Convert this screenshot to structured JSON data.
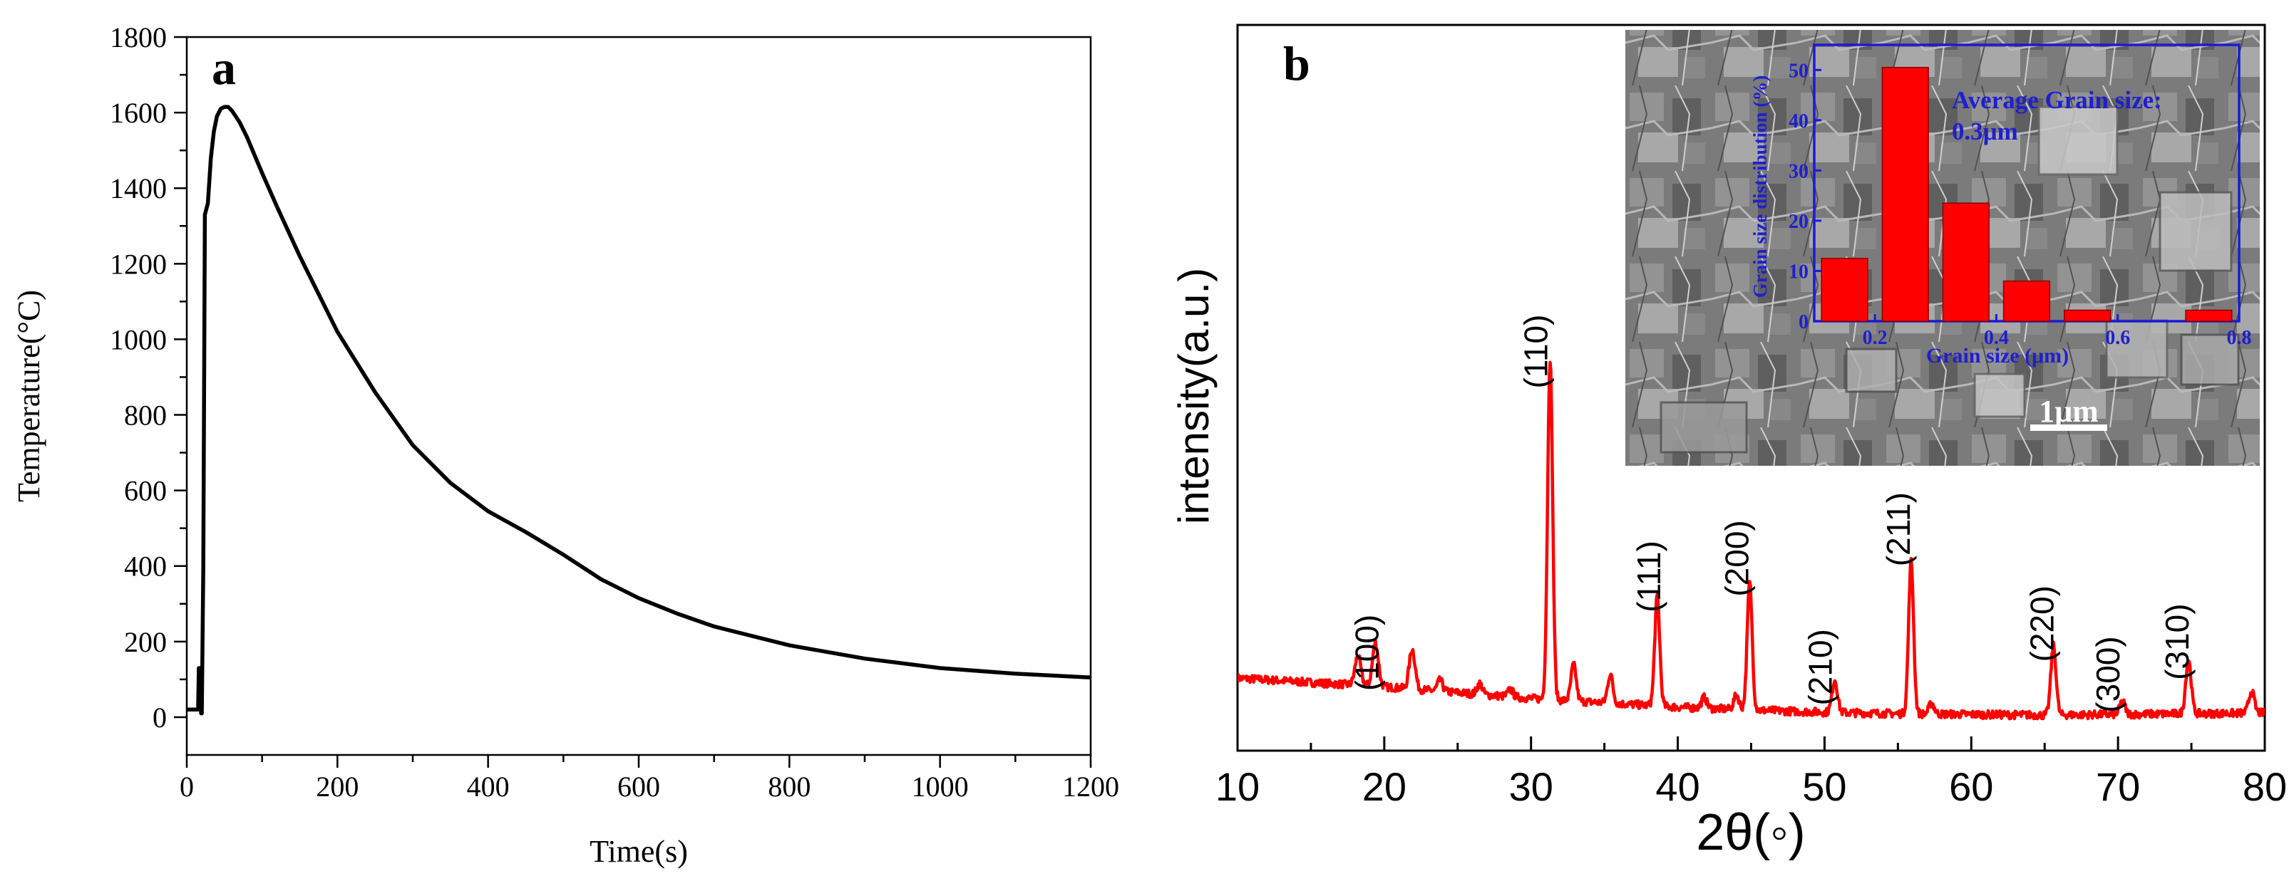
{
  "colors": {
    "panel_a_line": "#000000",
    "panel_b_line": "#ff0000",
    "inset_bar": "#ff0000",
    "inset_text": "#1f1fd0",
    "inset_frame": "#1a1ad8",
    "axis": "#000000"
  },
  "chart_data": [
    {
      "id": "a",
      "type": "line",
      "panel_label": "a",
      "title": "",
      "xlabel": "Time(s)",
      "ylabel": "Temperature(°C)",
      "xlim": [
        0,
        1200
      ],
      "ylim": [
        -100,
        1800
      ],
      "xticks": [
        0,
        200,
        400,
        600,
        800,
        1000,
        1200
      ],
      "yticks": [
        0,
        200,
        400,
        600,
        800,
        1000,
        1200,
        1400,
        1600,
        1800
      ],
      "series": [
        {
          "name": "temperature",
          "x": [
            0,
            15,
            16,
            18,
            19,
            20,
            22,
            24,
            28,
            32,
            36,
            40,
            45,
            50,
            55,
            60,
            70,
            80,
            100,
            120,
            150,
            200,
            250,
            300,
            350,
            400,
            450,
            500,
            550,
            600,
            650,
            700,
            800,
            900,
            1000,
            1100,
            1200
          ],
          "y": [
            20,
            20,
            130,
            130,
            10,
            10,
            400,
            1330,
            1360,
            1480,
            1550,
            1590,
            1610,
            1615,
            1615,
            1605,
            1575,
            1535,
            1440,
            1350,
            1220,
            1020,
            860,
            720,
            620,
            545,
            490,
            430,
            365,
            315,
            275,
            240,
            190,
            155,
            130,
            115,
            105
          ]
        }
      ]
    },
    {
      "id": "b",
      "type": "line",
      "panel_label": "b",
      "title": "",
      "xlabel": "2θ(◦)",
      "ylabel": "intensity(a.u.)",
      "xlim": [
        10,
        80
      ],
      "ylim": [
        0,
        100
      ],
      "xticks": [
        10,
        20,
        30,
        40,
        50,
        60,
        70,
        80
      ],
      "baseline": [
        [
          10,
          10.0
        ],
        [
          15,
          9.4
        ],
        [
          20,
          8.8
        ],
        [
          25,
          8.0
        ],
        [
          30,
          7.2
        ],
        [
          35,
          6.6
        ],
        [
          40,
          6.0
        ],
        [
          45,
          5.6
        ],
        [
          50,
          5.3
        ],
        [
          55,
          5.1
        ],
        [
          60,
          5.0
        ],
        [
          65,
          4.9
        ],
        [
          70,
          5.0
        ],
        [
          75,
          5.1
        ],
        [
          80,
          5.2
        ]
      ],
      "peaks": [
        {
          "x": 18.2,
          "h": 4.0,
          "w": 0.28
        },
        {
          "x": 19.4,
          "h": 6.0,
          "w": 0.28
        },
        {
          "x": 21.9,
          "h": 5.5,
          "w": 0.28
        },
        {
          "x": 23.8,
          "h": 1.5,
          "w": 0.25
        },
        {
          "x": 26.5,
          "h": 1.5,
          "w": 0.25
        },
        {
          "x": 28.6,
          "h": 1.0,
          "w": 0.25
        },
        {
          "x": 31.3,
          "h": 47.0,
          "w": 0.24
        },
        {
          "x": 32.9,
          "h": 5.0,
          "w": 0.25
        },
        {
          "x": 35.4,
          "h": 4.0,
          "w": 0.25
        },
        {
          "x": 38.6,
          "h": 15.0,
          "w": 0.24
        },
        {
          "x": 41.8,
          "h": 1.5,
          "w": 0.25
        },
        {
          "x": 44.0,
          "h": 2.0,
          "w": 0.25
        },
        {
          "x": 44.9,
          "h": 17.5,
          "w": 0.24
        },
        {
          "x": 50.7,
          "h": 4.5,
          "w": 0.26
        },
        {
          "x": 55.9,
          "h": 21.0,
          "w": 0.24
        },
        {
          "x": 57.3,
          "h": 1.5,
          "w": 0.25
        },
        {
          "x": 65.6,
          "h": 9.5,
          "w": 0.25
        },
        {
          "x": 70.3,
          "h": 1.8,
          "w": 0.25
        },
        {
          "x": 74.8,
          "h": 7.5,
          "w": 0.26
        },
        {
          "x": 79.1,
          "h": 3.0,
          "w": 0.26
        }
      ],
      "annotations": [
        {
          "text": "(100)",
          "x": 19.6,
          "y": 13.5
        },
        {
          "text": "(110)",
          "x": 31.1,
          "y": 55.0
        },
        {
          "text": "(111)",
          "x": 38.8,
          "y": 24.0
        },
        {
          "text": "(200)",
          "x": 44.8,
          "y": 26.5
        },
        {
          "text": "(210)",
          "x": 50.5,
          "y": 11.5
        },
        {
          "text": "(211)",
          "x": 55.8,
          "y": 30.5
        },
        {
          "text": "(220)",
          "x": 65.6,
          "y": 17.5
        },
        {
          "text": "(300)",
          "x": 70.1,
          "y": 10.5
        },
        {
          "text": "(310)",
          "x": 74.8,
          "y": 15.0
        }
      ]
    },
    {
      "id": "b-inset",
      "type": "bar",
      "title": "",
      "xlabel": "Grain size (μm)",
      "ylabel": "Grain size distribution (%)",
      "xlim": [
        0.1,
        0.8
      ],
      "ylim": [
        0,
        55
      ],
      "xticks": [
        0.2,
        0.4,
        0.6,
        0.8
      ],
      "yticks": [
        0,
        10,
        20,
        30,
        40,
        50
      ],
      "categories": [
        "0.1-0.2",
        "0.2-0.3",
        "0.3-0.4",
        "0.4-0.5",
        "0.5-0.6",
        "0.6-0.7",
        "0.7-0.8"
      ],
      "bins": [
        [
          0.1,
          0.2
        ],
        [
          0.2,
          0.3
        ],
        [
          0.3,
          0.4
        ],
        [
          0.4,
          0.5
        ],
        [
          0.5,
          0.6
        ],
        [
          0.6,
          0.7
        ],
        [
          0.7,
          0.8
        ]
      ],
      "values": [
        12.5,
        50.5,
        23.5,
        8.0,
        2.2,
        0,
        2.2
      ],
      "annotation_lines": [
        "Average Grain size:",
        "0.3μm"
      ]
    }
  ],
  "sem_image": {
    "scale_bar_label": "1μm"
  }
}
